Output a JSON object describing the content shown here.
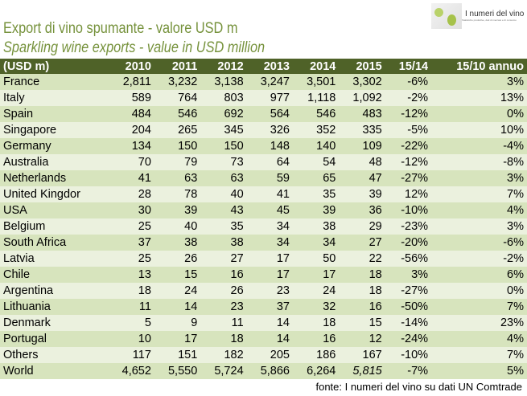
{
  "title": "Export di vino spumante - valore USD m",
  "subtitle": "Sparkling wine exports - value in USD million",
  "logo": {
    "name": "I numeri del vino",
    "tagline": "Statistiche produttive, dati di mercato e di consumo"
  },
  "columns": [
    "(USD m)",
    "2010",
    "2011",
    "2012",
    "2013",
    "2014",
    "2015",
    "15/14",
    "15/10 annuo"
  ],
  "rows": [
    [
      "France",
      "2,811",
      "3,232",
      "3,138",
      "3,247",
      "3,501",
      "3,302",
      "-6%",
      "3%"
    ],
    [
      "Italy",
      "589",
      "764",
      "803",
      "977",
      "1,118",
      "1,092",
      "-2%",
      "13%"
    ],
    [
      "Spain",
      "484",
      "546",
      "692",
      "564",
      "546",
      "483",
      "-12%",
      "0%"
    ],
    [
      "Singapore",
      "204",
      "265",
      "345",
      "326",
      "352",
      "335",
      "-5%",
      "10%"
    ],
    [
      "Germany",
      "134",
      "150",
      "150",
      "148",
      "140",
      "109",
      "-22%",
      "-4%"
    ],
    [
      "Australia",
      "70",
      "79",
      "73",
      "64",
      "54",
      "48",
      "-12%",
      "-8%"
    ],
    [
      "Netherlands",
      "41",
      "63",
      "63",
      "59",
      "65",
      "47",
      "-27%",
      "3%"
    ],
    [
      "United Kingdor",
      "28",
      "78",
      "40",
      "41",
      "35",
      "39",
      "12%",
      "7%"
    ],
    [
      "USA",
      "30",
      "39",
      "43",
      "45",
      "39",
      "36",
      "-10%",
      "4%"
    ],
    [
      "Belgium",
      "25",
      "40",
      "35",
      "34",
      "38",
      "29",
      "-23%",
      "3%"
    ],
    [
      "South Africa",
      "37",
      "38",
      "38",
      "34",
      "34",
      "27",
      "-20%",
      "-6%"
    ],
    [
      "Latvia",
      "25",
      "26",
      "27",
      "17",
      "50",
      "22",
      "-56%",
      "-2%"
    ],
    [
      "Chile",
      "13",
      "15",
      "16",
      "17",
      "17",
      "18",
      "3%",
      "6%"
    ],
    [
      "Argentina",
      "18",
      "24",
      "26",
      "23",
      "24",
      "18",
      "-27%",
      "0%"
    ],
    [
      "Lithuania",
      "11",
      "14",
      "23",
      "37",
      "32",
      "16",
      "-50%",
      "7%"
    ],
    [
      "Denmark",
      "5",
      "9",
      "11",
      "14",
      "18",
      "15",
      "-14%",
      "23%"
    ],
    [
      "Portugal",
      "10",
      "17",
      "18",
      "14",
      "16",
      "12",
      "-24%",
      "4%"
    ],
    [
      "Others",
      "117",
      "151",
      "182",
      "205",
      "186",
      "167",
      "-10%",
      "7%"
    ],
    [
      "World",
      "4,652",
      "5,550",
      "5,724",
      "5,866",
      "6,264",
      "5,815",
      "-7%",
      "5%"
    ]
  ],
  "source": "fonte: I numeri del vino su dati UN Comtrade",
  "colors": {
    "header": "#4f6228",
    "title": "#76923c",
    "row_dark": "#d7e4bd",
    "row_light": "#ebf1de"
  }
}
